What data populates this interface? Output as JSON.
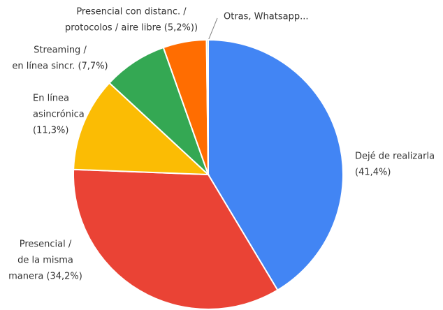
{
  "chart_data": {
    "type": "pie",
    "categories": [
      [
        "Dejé de realizarla",
        "(41,4%)"
      ],
      [
        "Presencial /",
        "de la misma",
        "manera (34,2%)"
      ],
      [
        "En línea",
        "asincrónica",
        "(11,3%)"
      ],
      [
        "Streaming /",
        "en línea sincr. (7,7%)"
      ],
      [
        "Presencial con distanc. /",
        "protocolos / aire libre (5,2%))"
      ],
      [
        "Otras, Whatsapp..."
      ]
    ],
    "values": [
      41.4,
      34.2,
      11.3,
      7.7,
      5.2,
      0.2
    ],
    "colors": [
      "#4285f4",
      "#ea4335",
      "#fbbc04",
      "#34a853",
      "#ff6d01",
      "#46bdc6"
    ]
  }
}
